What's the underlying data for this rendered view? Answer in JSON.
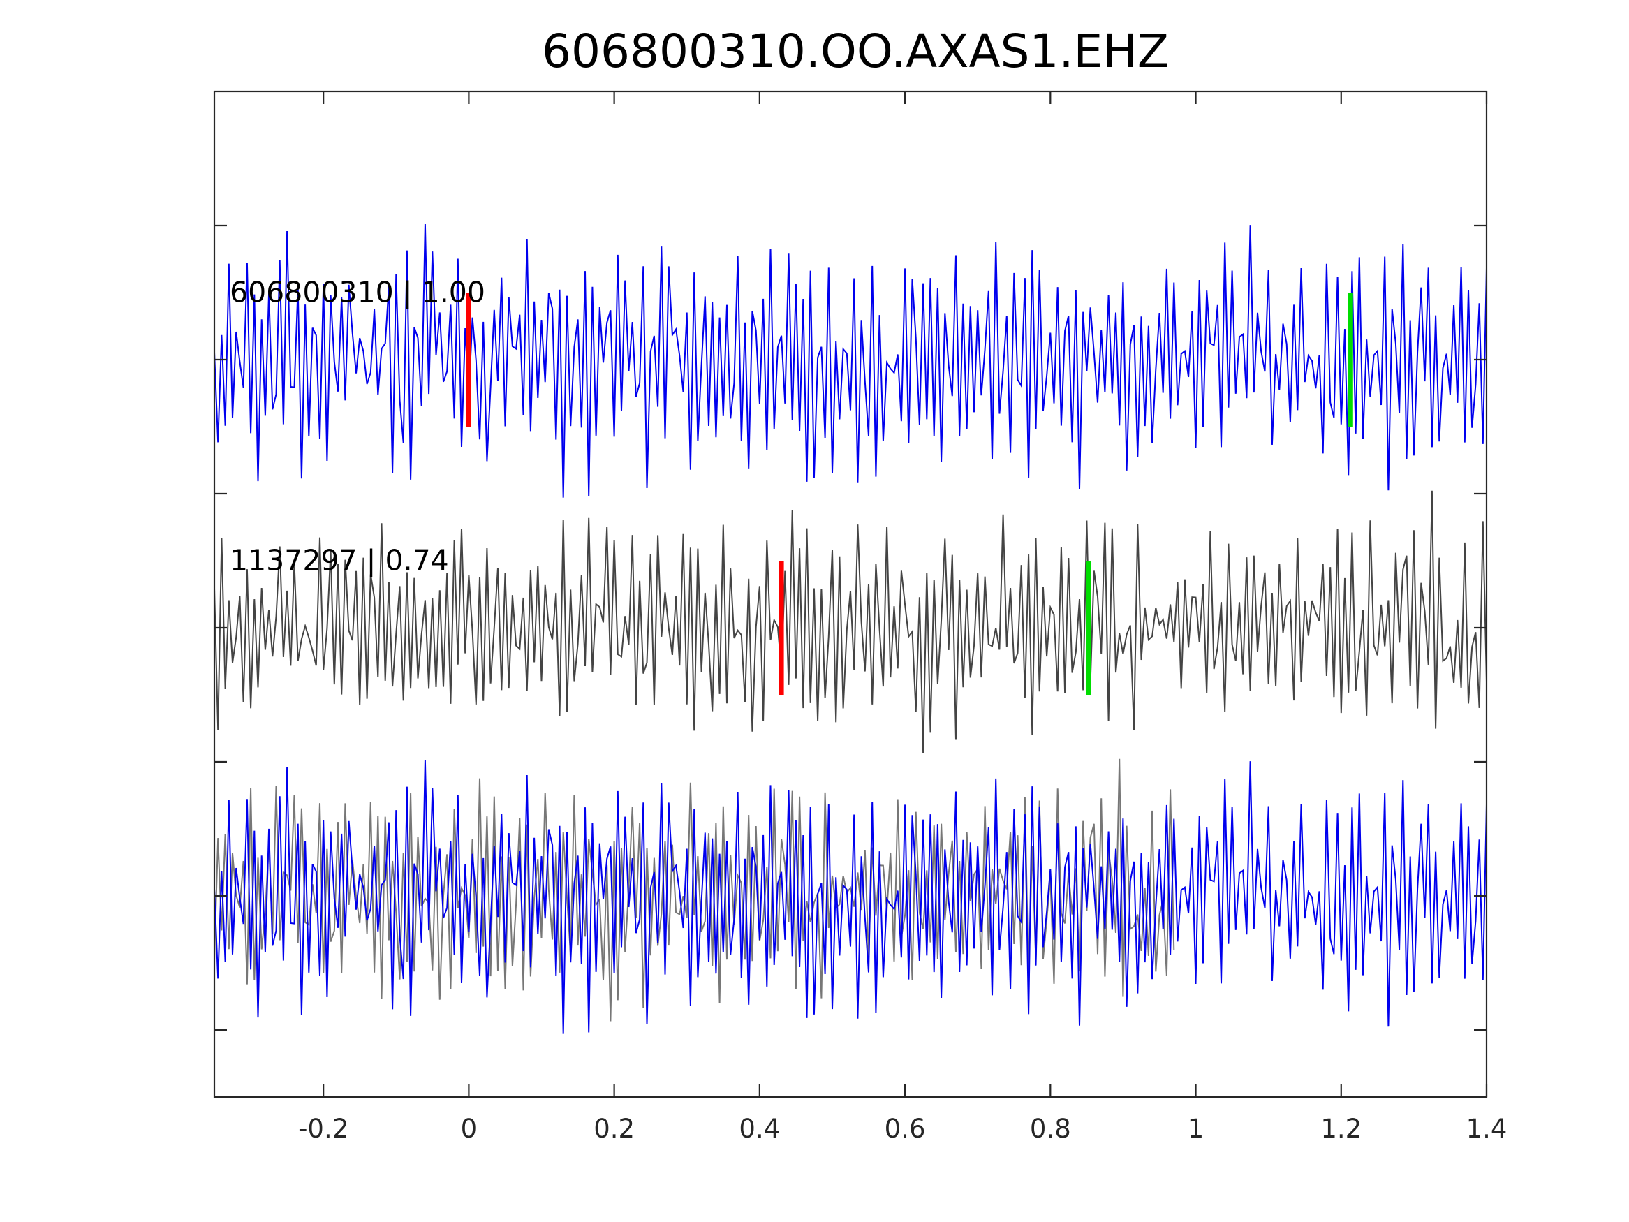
{
  "chart_data": {
    "type": "line",
    "title": "606800310.OO.AXAS1.EHZ",
    "xlabel": "",
    "ylabel": "",
    "xlim": [
      -0.35,
      1.4
    ],
    "ylim": [
      0,
      7.5
    ],
    "grid": false,
    "x_ticks": [
      {
        "value": -0.2,
        "label": "-0.2"
      },
      {
        "value": 0,
        "label": "0"
      },
      {
        "value": 0.2,
        "label": "0.2"
      },
      {
        "value": 0.4,
        "label": "0.4"
      },
      {
        "value": 0.6,
        "label": "0.6"
      },
      {
        "value": 0.8,
        "label": "0.8"
      },
      {
        "value": 1.0,
        "label": "1"
      },
      {
        "value": 1.2,
        "label": "1.2"
      },
      {
        "value": 1.4,
        "label": "1.4"
      }
    ],
    "y_ticks": [
      0.5,
      1.5,
      2.5,
      3.5,
      4.5,
      5.5,
      6.5
    ],
    "series": [
      {
        "id": "trace1",
        "label": "606800310 | 1.00",
        "color": "#0000ee",
        "baseline": 5.5,
        "amplitude": 1.25,
        "seed": 606800310,
        "p_pick": 0.0,
        "s_pick": 1.213
      },
      {
        "id": "trace2",
        "label": "1137297 | 0.74",
        "color": "#444444",
        "baseline": 3.5,
        "amplitude": 1.1,
        "seed": 1137297,
        "p_pick": 0.43,
        "s_pick": 0.853
      },
      {
        "id": "overlay",
        "label": "",
        "baseline": 1.5,
        "components": [
          {
            "from": "trace2",
            "color": "#777777",
            "shift": -0.43
          },
          {
            "from": "trace1",
            "color": "#0000ee",
            "shift": 0.0
          }
        ]
      }
    ],
    "pick_colors": {
      "p": "#ff0000",
      "s": "#00dd00"
    },
    "sample_interval": 0.005,
    "trace_extent": [
      -0.35,
      1.4
    ]
  }
}
